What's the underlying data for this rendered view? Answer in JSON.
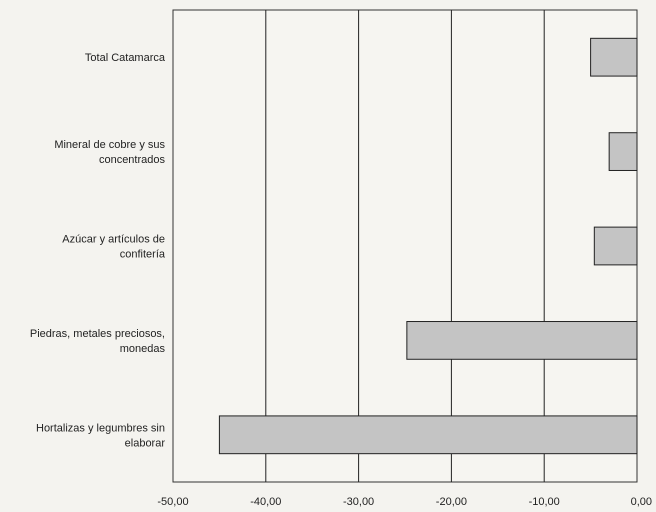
{
  "chart_data": {
    "type": "bar",
    "orientation": "horizontal",
    "categories": [
      [
        "Total Catamarca"
      ],
      [
        "Mineral de cobre y sus",
        "concentrados"
      ],
      [
        "Azúcar y artículos de",
        "confitería"
      ],
      [
        "Piedras, metales preciosos,",
        "monedas"
      ],
      [
        "Hortalizas y legumbres sin",
        "elaborar"
      ]
    ],
    "values": [
      -5.0,
      -3.0,
      -4.6,
      -24.8,
      -45.0
    ],
    "xlim": [
      -50,
      0
    ],
    "xticks": [
      "-50,00",
      "-40,00",
      "-30,00",
      "-20,00",
      "-10,00",
      "0,00"
    ],
    "xtick_values": [
      -50,
      -40,
      -30,
      -20,
      -10,
      0
    ],
    "grid": "vertical",
    "bar_color": "#c4c4c4",
    "bar_stroke": "#222222"
  }
}
